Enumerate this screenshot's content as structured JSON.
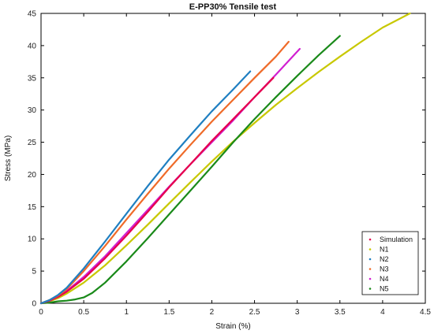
{
  "chart_data": {
    "type": "line",
    "title": "E-PP30% Tensile test",
    "xlabel": "Strain (%)",
    "ylabel": "Stress (MPa)",
    "xlim": [
      0,
      4.5
    ],
    "ylim": [
      0,
      45
    ],
    "xticks": [
      0,
      0.5,
      1,
      1.5,
      2,
      2.5,
      3,
      3.5,
      4,
      4.5
    ],
    "xtick_labels": [
      "0",
      "0.5",
      "1",
      "1.5",
      "2",
      "2.5",
      "3",
      "3.5",
      "4",
      "4.5"
    ],
    "yticks": [
      0,
      5,
      10,
      15,
      20,
      25,
      30,
      35,
      40,
      45
    ],
    "ytick_labels": [
      "0",
      "5",
      "10",
      "15",
      "20",
      "25",
      "30",
      "35",
      "40",
      "45"
    ],
    "grid": false,
    "legend_position": "bottom-right",
    "series": [
      {
        "name": "Simulation",
        "color": "#e6004c",
        "x": [
          0,
          0.1,
          0.2,
          0.3,
          0.5,
          0.75,
          1.0,
          1.25,
          1.5,
          1.75,
          2.0,
          2.25,
          2.5,
          2.72
        ],
        "y": [
          0,
          0.4,
          1.0,
          1.8,
          3.8,
          7.0,
          10.5,
          14.2,
          18.0,
          21.6,
          25.2,
          28.6,
          32.0,
          35.0
        ]
      },
      {
        "name": "N1",
        "color": "#c8c800",
        "x": [
          0,
          0.1,
          0.2,
          0.3,
          0.5,
          0.75,
          1.0,
          1.25,
          1.5,
          1.75,
          2.0,
          2.25,
          2.5,
          2.75,
          3.0,
          3.25,
          3.5,
          3.75,
          4.0,
          4.32
        ],
        "y": [
          0,
          0.3,
          0.8,
          1.5,
          3.2,
          5.9,
          9.0,
          12.2,
          15.5,
          18.8,
          22.0,
          25.1,
          28.0,
          30.8,
          33.4,
          35.9,
          38.3,
          40.6,
          42.8,
          45.0
        ]
      },
      {
        "name": "N2",
        "color": "#1f7fc1",
        "x": [
          0,
          0.1,
          0.2,
          0.3,
          0.5,
          0.75,
          1.0,
          1.25,
          1.5,
          1.75,
          2.0,
          2.25,
          2.45
        ],
        "y": [
          0,
          0.5,
          1.3,
          2.4,
          5.4,
          9.6,
          13.9,
          18.2,
          22.3,
          26.1,
          29.8,
          33.2,
          36.0
        ]
      },
      {
        "name": "N3",
        "color": "#ef6b29",
        "x": [
          0,
          0.1,
          0.2,
          0.3,
          0.5,
          0.75,
          1.0,
          1.25,
          1.5,
          1.75,
          2.0,
          2.25,
          2.5,
          2.75,
          2.9
        ],
        "y": [
          0,
          0.5,
          1.2,
          2.2,
          5.0,
          8.9,
          13.0,
          17.0,
          20.9,
          24.6,
          28.2,
          31.6,
          35.0,
          38.3,
          40.6
        ]
      },
      {
        "name": "N4",
        "color": "#d11fd1",
        "x": [
          0,
          0.1,
          0.2,
          0.3,
          0.5,
          0.75,
          1.0,
          1.25,
          1.5,
          1.75,
          2.0,
          2.25,
          2.5,
          2.75,
          3.03
        ],
        "y": [
          0,
          0.4,
          1.0,
          1.9,
          4.1,
          7.3,
          10.9,
          14.5,
          18.1,
          21.6,
          25.0,
          28.4,
          32.0,
          35.5,
          39.5
        ]
      },
      {
        "name": "N5",
        "color": "#1a8a1a",
        "x": [
          0,
          0.1,
          0.2,
          0.3,
          0.4,
          0.5,
          0.6,
          0.75,
          1.0,
          1.25,
          1.5,
          1.75,
          2.0,
          2.25,
          2.5,
          2.75,
          3.0,
          3.25,
          3.5
        ],
        "y": [
          0,
          0.1,
          0.3,
          0.4,
          0.6,
          0.9,
          1.6,
          3.2,
          6.5,
          10.1,
          13.8,
          17.5,
          21.2,
          25.0,
          28.6,
          32.0,
          35.3,
          38.5,
          41.5
        ]
      }
    ]
  }
}
